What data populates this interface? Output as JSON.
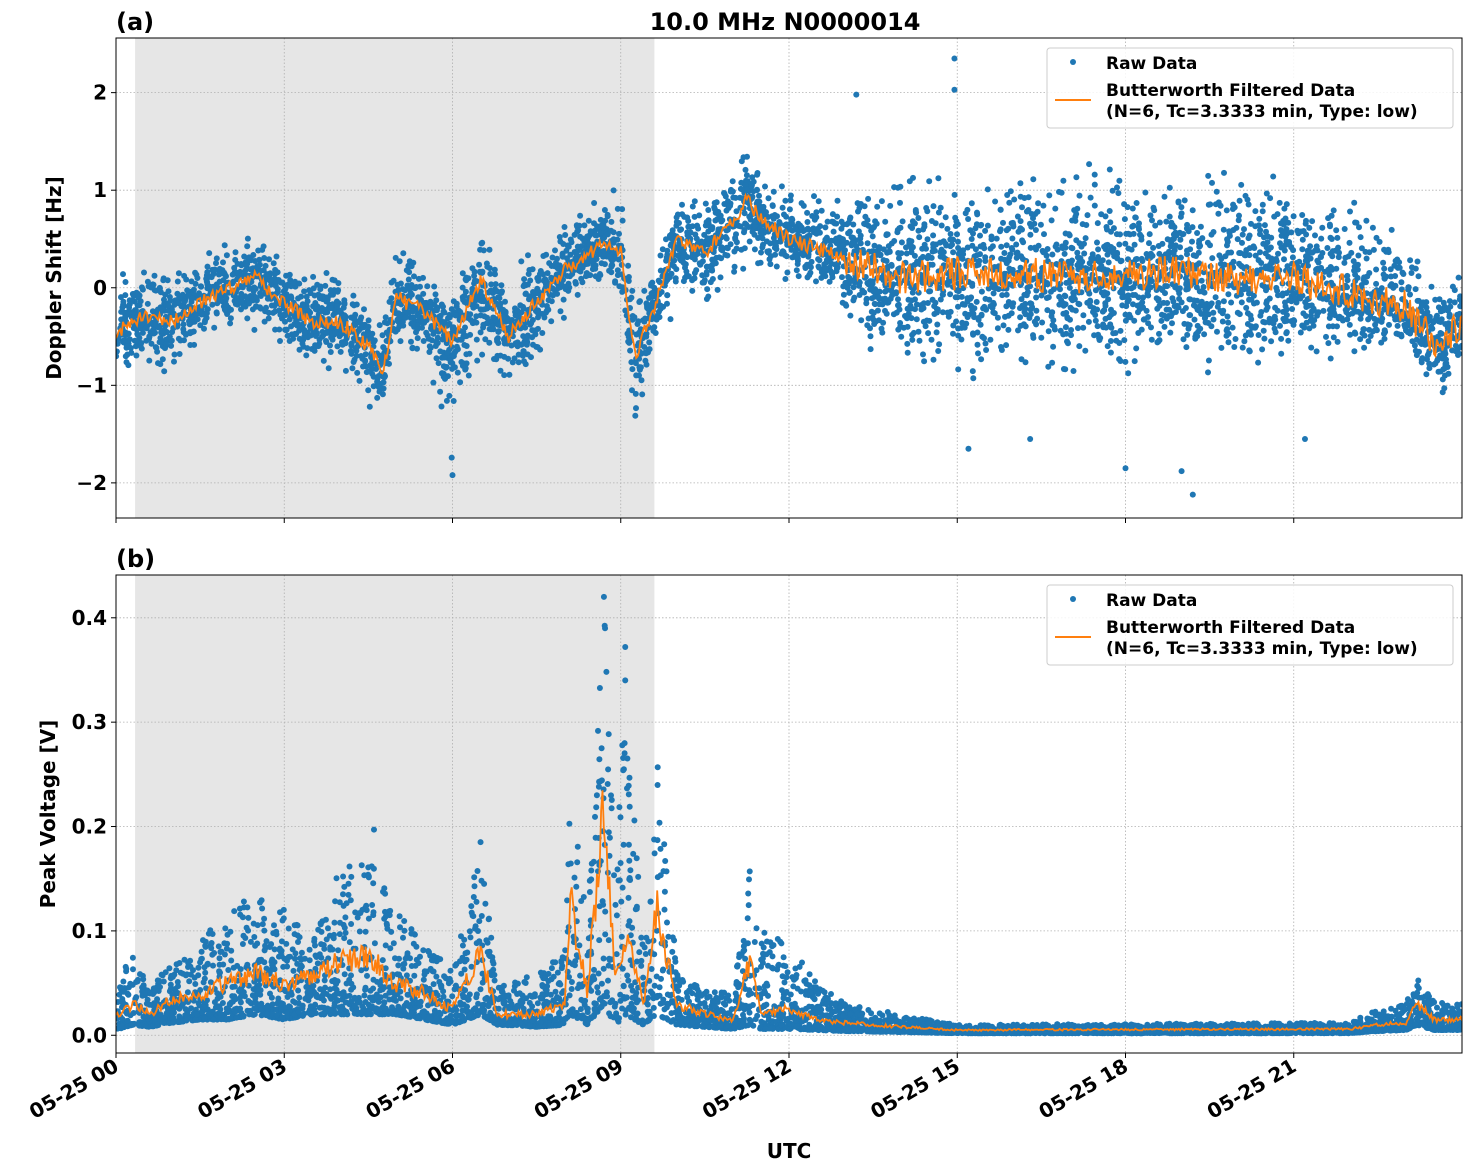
{
  "figure": {
    "title": "10.0 MHz N0000014",
    "xlabel": "UTC",
    "colors": {
      "raw": "#1f77b4",
      "filtered": "#ff7f0e",
      "shade": "#e6e6e6",
      "grid": "#b0b0b0"
    }
  },
  "chart_data": [
    {
      "type": "scatter",
      "panel_label": "(a)",
      "title": "10.0 MHz N0000014",
      "xlabel": "",
      "ylabel": "Doppler Shift [Hz]",
      "x_unit": "hours UTC on 05-25",
      "xlim": [
        0,
        24
      ],
      "ylim": [
        -2.36,
        2.56
      ],
      "xticks": [
        0,
        3,
        6,
        9,
        12,
        15,
        18,
        21
      ],
      "xtick_labels": [
        "",
        "",
        "",
        "",
        "",
        "",
        "",
        ""
      ],
      "yticks": [
        -2,
        -1,
        0,
        1,
        2
      ],
      "ytick_labels": [
        "−2",
        "−1",
        "0",
        "1",
        "2"
      ],
      "grid": true,
      "shaded_interval": [
        0.34,
        9.6
      ],
      "legend": {
        "placement": "top-right",
        "entries": [
          "Raw Data",
          "Butterworth Filtered Data",
          "(N=6, Tc=3.3333 min, Type: low)"
        ]
      },
      "series": [
        {
          "name": "Raw Data",
          "kind": "scatter",
          "envelope_columns": [
            "x",
            "min",
            "max"
          ],
          "envelope": [
            [
              0,
              -0.95,
              0.3
            ],
            [
              0.5,
              -0.8,
              0.3
            ],
            [
              1,
              -1.1,
              0.25
            ],
            [
              1.5,
              -0.7,
              0.4
            ],
            [
              2,
              -0.5,
              0.55
            ],
            [
              2.5,
              -0.45,
              0.6
            ],
            [
              3,
              -0.75,
              0.3
            ],
            [
              3.5,
              -0.9,
              0.25
            ],
            [
              4,
              -0.85,
              0.2
            ],
            [
              4.5,
              -1.2,
              0.0
            ],
            [
              4.75,
              -1.25,
              -0.2
            ],
            [
              5,
              -0.6,
              0.45
            ],
            [
              5.5,
              -0.75,
              0.2
            ],
            [
              6,
              -1.9,
              0.15
            ],
            [
              6.5,
              -0.8,
              0.6
            ],
            [
              7,
              -1.3,
              0.2
            ],
            [
              7.5,
              -0.8,
              0.4
            ],
            [
              8,
              -0.3,
              0.7
            ],
            [
              8.3,
              -0.2,
              1.0
            ],
            [
              8.7,
              0.0,
              1.05
            ],
            [
              9.0,
              0.0,
              1.1
            ],
            [
              9.25,
              -1.75,
              0.0
            ],
            [
              9.6,
              -0.7,
              0.3
            ],
            [
              10,
              -0.2,
              0.9
            ],
            [
              10.5,
              -0.3,
              1.0
            ],
            [
              11,
              0.0,
              1.4
            ],
            [
              11.25,
              0.2,
              1.4
            ],
            [
              11.5,
              0.1,
              1.2
            ],
            [
              12,
              0.0,
              1.1
            ],
            [
              12.5,
              -0.2,
              1.0
            ],
            [
              13,
              -0.4,
              1.0
            ],
            [
              13.5,
              -0.7,
              1.1
            ],
            [
              14,
              -0.9,
              1.2
            ],
            [
              15,
              -1.0,
              1.35
            ],
            [
              16,
              -1.0,
              1.4
            ],
            [
              17,
              -1.0,
              1.4
            ],
            [
              18,
              -1.0,
              1.4
            ],
            [
              19,
              -1.0,
              1.35
            ],
            [
              20,
              -1.0,
              1.3
            ],
            [
              21,
              -0.9,
              1.2
            ],
            [
              22,
              -0.8,
              1.0
            ],
            [
              23,
              -0.7,
              0.7
            ],
            [
              23.4,
              -1.1,
              0.3
            ],
            [
              23.7,
              -1.2,
              0.2
            ],
            [
              24,
              -0.8,
              0.5
            ]
          ],
          "outliers": [
            [
              14.95,
              2.35
            ],
            [
              14.95,
              2.03
            ],
            [
              13.2,
              1.98
            ],
            [
              15.2,
              -1.65
            ],
            [
              19.2,
              -2.12
            ],
            [
              18,
              -1.85
            ],
            [
              6,
              -1.92
            ],
            [
              19,
              -1.88
            ],
            [
              16.3,
              -1.55
            ],
            [
              21.2,
              -1.55
            ]
          ]
        },
        {
          "name": "Butterworth Filtered Data",
          "kind": "line",
          "x": [
            0,
            0.5,
            1,
            1.5,
            2,
            2.5,
            3,
            3.5,
            4,
            4.5,
            4.75,
            5,
            5.5,
            6,
            6.5,
            7,
            7.5,
            8,
            8.3,
            8.7,
            9.0,
            9.25,
            9.6,
            10,
            10.5,
            11,
            11.25,
            11.5,
            12,
            12.5,
            13,
            13.5,
            14,
            15,
            16,
            17,
            18,
            19,
            20,
            21,
            22,
            23,
            23.4,
            23.7,
            24
          ],
          "y": [
            -0.45,
            -0.3,
            -0.35,
            -0.15,
            0.0,
            0.1,
            -0.15,
            -0.35,
            -0.35,
            -0.6,
            -0.9,
            -0.1,
            -0.25,
            -0.55,
            0.1,
            -0.5,
            -0.15,
            0.2,
            0.3,
            0.45,
            0.4,
            -0.7,
            -0.2,
            0.5,
            0.35,
            0.7,
            0.9,
            0.7,
            0.5,
            0.4,
            0.3,
            0.2,
            0.1,
            0.15,
            0.15,
            0.1,
            0.15,
            0.15,
            0.1,
            0.1,
            -0.05,
            -0.2,
            -0.5,
            -0.6,
            -0.3
          ]
        }
      ]
    },
    {
      "type": "scatter",
      "panel_label": "(b)",
      "xlabel": "UTC",
      "ylabel": "Peak Voltage [V]",
      "xlim": [
        0,
        24
      ],
      "ylim": [
        -0.017,
        0.441
      ],
      "xticks": [
        0,
        3,
        6,
        9,
        12,
        15,
        18,
        21
      ],
      "xtick_labels": [
        "05-25 00",
        "05-25 03",
        "05-25 06",
        "05-25 09",
        "05-25 12",
        "05-25 15",
        "05-25 18",
        "05-25 21"
      ],
      "yticks": [
        0,
        0.1,
        0.2,
        0.3,
        0.4
      ],
      "ytick_labels": [
        "0.0",
        "0.1",
        "0.2",
        "0.3",
        "0.4"
      ],
      "grid": true,
      "shaded_interval": [
        0.34,
        9.6
      ],
      "legend": {
        "placement": "top-right",
        "entries": [
          "Raw Data",
          "Butterworth Filtered Data",
          "(N=6, Tc=3.3333 min, Type: low)"
        ]
      },
      "series": [
        {
          "name": "Raw Data",
          "kind": "scatter",
          "envelope_columns": [
            "x",
            "min",
            "max"
          ],
          "envelope": [
            [
              0,
              0.005,
              0.05
            ],
            [
              0.3,
              0.01,
              0.08
            ],
            [
              0.6,
              0.008,
              0.045
            ],
            [
              1,
              0.012,
              0.07
            ],
            [
              1.5,
              0.015,
              0.09
            ],
            [
              2,
              0.015,
              0.12
            ],
            [
              2.5,
              0.02,
              0.14
            ],
            [
              3,
              0.015,
              0.12
            ],
            [
              3.5,
              0.02,
              0.09
            ],
            [
              4,
              0.02,
              0.16
            ],
            [
              4.5,
              0.02,
              0.17
            ],
            [
              5,
              0.02,
              0.12
            ],
            [
              5.5,
              0.015,
              0.09
            ],
            [
              6,
              0.01,
              0.06
            ],
            [
              6.5,
              0.02,
              0.18
            ],
            [
              6.8,
              0.01,
              0.05
            ],
            [
              7.5,
              0.008,
              0.06
            ],
            [
              8,
              0.01,
              0.08
            ],
            [
              8.1,
              0.02,
              0.27
            ],
            [
              8.4,
              0.01,
              0.1
            ],
            [
              8.7,
              0.03,
              0.42
            ],
            [
              8.9,
              0.01,
              0.15
            ],
            [
              9.1,
              0.02,
              0.37
            ],
            [
              9.4,
              0.01,
              0.08
            ],
            [
              9.65,
              0.02,
              0.29
            ],
            [
              10,
              0.01,
              0.06
            ],
            [
              10.5,
              0.008,
              0.045
            ],
            [
              11,
              0.006,
              0.04
            ],
            [
              11.3,
              0.01,
              0.155
            ],
            [
              11.5,
              0.006,
              0.1
            ],
            [
              12,
              0.006,
              0.09
            ],
            [
              12.5,
              0.005,
              0.05
            ],
            [
              13,
              0.004,
              0.03
            ],
            [
              14,
              0.003,
              0.02
            ],
            [
              15,
              0.002,
              0.01
            ],
            [
              22,
              0.002,
              0.012
            ],
            [
              22.5,
              0.004,
              0.025
            ],
            [
              23,
              0.005,
              0.03
            ],
            [
              23.2,
              0.01,
              0.057
            ],
            [
              23.5,
              0.005,
              0.032
            ],
            [
              24,
              0.005,
              0.03
            ]
          ],
          "outliers": [
            [
              8.7,
              0.42
            ],
            [
              8.72,
              0.39
            ],
            [
              9.08,
              0.372
            ],
            [
              9.08,
              0.34
            ],
            [
              4.6,
              0.197
            ],
            [
              11.3,
              0.157
            ],
            [
              6.5,
              0.185
            ]
          ]
        },
        {
          "name": "Butterworth Filtered Data",
          "kind": "line",
          "x": [
            0,
            0.3,
            0.6,
            1,
            1.5,
            2,
            2.5,
            3,
            3.5,
            4,
            4.5,
            5,
            5.5,
            6,
            6.5,
            6.8,
            7.5,
            8,
            8.1,
            8.4,
            8.7,
            8.9,
            9.1,
            9.4,
            9.65,
            10,
            10.5,
            11,
            11.3,
            11.5,
            12,
            12.5,
            13,
            14,
            15,
            22,
            22.5,
            23,
            23.2,
            23.5,
            24
          ],
          "y": [
            0.018,
            0.03,
            0.02,
            0.035,
            0.04,
            0.05,
            0.06,
            0.05,
            0.055,
            0.07,
            0.075,
            0.05,
            0.04,
            0.025,
            0.08,
            0.02,
            0.02,
            0.03,
            0.13,
            0.04,
            0.22,
            0.05,
            0.1,
            0.03,
            0.12,
            0.03,
            0.02,
            0.015,
            0.07,
            0.02,
            0.025,
            0.015,
            0.012,
            0.008,
            0.005,
            0.006,
            0.01,
            0.012,
            0.03,
            0.015,
            0.015
          ]
        }
      ]
    }
  ]
}
